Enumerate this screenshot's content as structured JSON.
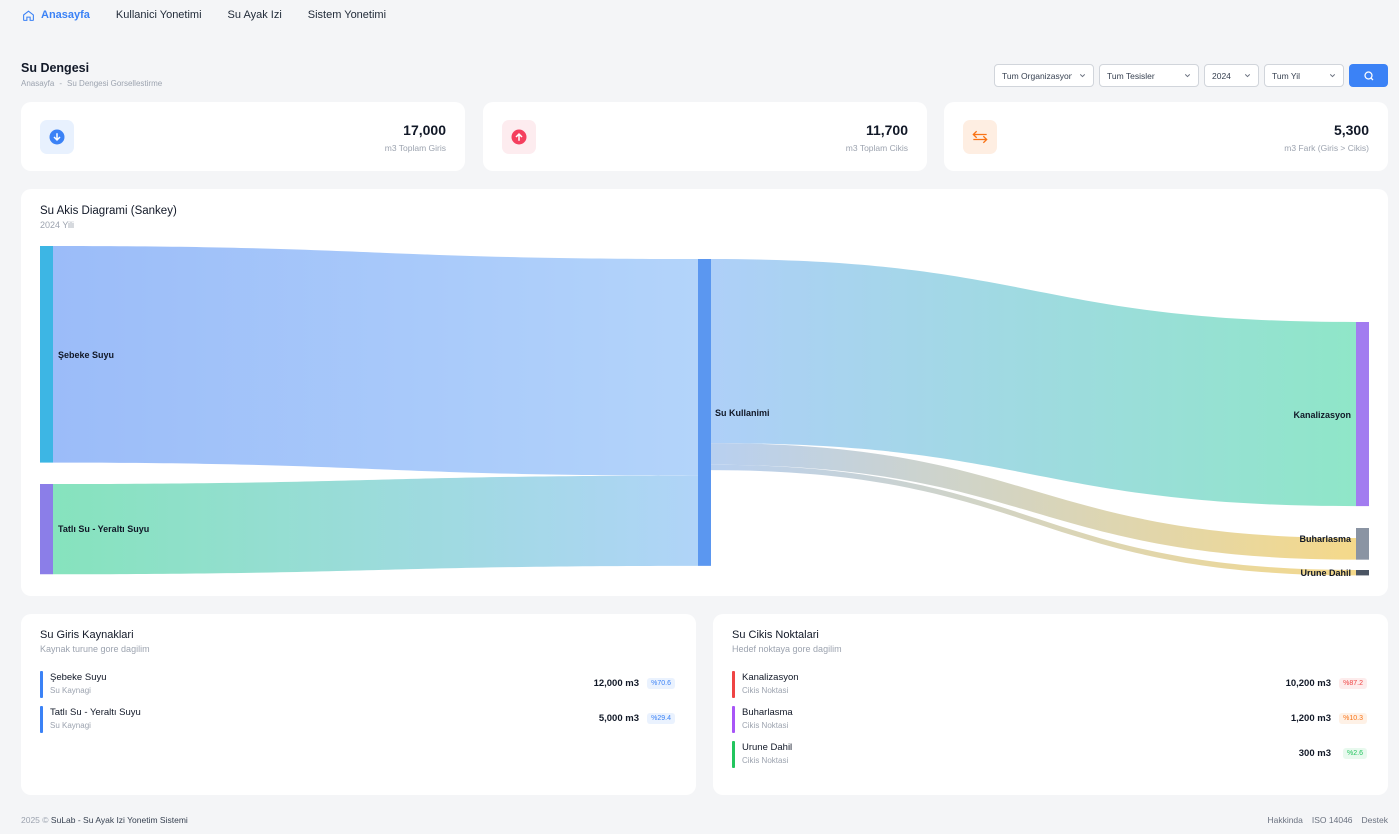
{
  "nav": {
    "items": [
      {
        "label": "Anasayfa"
      },
      {
        "label": "Kullanici Yonetimi"
      },
      {
        "label": "Su Ayak Izi"
      },
      {
        "label": "Sistem Yonetimi"
      }
    ]
  },
  "header": {
    "title": "Su Dengesi",
    "breadcrumb": [
      "Anasayfa",
      "-",
      "Su Dengesi Gorsellestirme"
    ]
  },
  "filters": {
    "organization": "Tum Organizasyonlar",
    "facility": "Tum Tesisler",
    "year": "2024",
    "period": "Tum Yil"
  },
  "stats": [
    {
      "value": "17,000",
      "label": "m3 Toplam Giris",
      "icon": "arrow-down-icon",
      "color": "#3b82f6"
    },
    {
      "value": "11,700",
      "label": "m3 Toplam Cikis",
      "icon": "arrow-up-icon",
      "color": "#f43f5e"
    },
    {
      "value": "5,300",
      "label": "m3 Fark (Giris > Cikis)",
      "icon": "swap-arrows-icon",
      "color": "#f97316"
    }
  ],
  "sankey": {
    "title": "Su Akis Diagrami (Sankey)",
    "subtitle": "2024 Yili",
    "node_labels": {
      "sebeke": "Şebeke Suyu",
      "tatli": "Tatlı Su - Yeraltı Suyu",
      "kullanim": "Su Kullanimi",
      "kanalizasyon": "Kanalizasyon",
      "buharlasma": "Buharlasma",
      "urune": "Urune Dahil"
    }
  },
  "chart_data": {
    "type": "sankey",
    "nodes": [
      "Şebeke Suyu",
      "Tatlı Su - Yeraltı Suyu",
      "Su Kullanimi",
      "Kanalizasyon",
      "Buharlasma",
      "Urune Dahil"
    ],
    "links": [
      {
        "source": "Şebeke Suyu",
        "target": "Su Kullanimi",
        "value": 12000
      },
      {
        "source": "Tatlı Su - Yeraltı Suyu",
        "target": "Su Kullanimi",
        "value": 5000
      },
      {
        "source": "Su Kullanimi",
        "target": "Kanalizasyon",
        "value": 10200
      },
      {
        "source": "Su Kullanimi",
        "target": "Buharlasma",
        "value": 1200
      },
      {
        "source": "Su Kullanimi",
        "target": "Urune Dahil",
        "value": 300
      }
    ]
  },
  "inputs_panel": {
    "title": "Su Giris Kaynaklari",
    "subtitle": "Kaynak turune gore dagilim",
    "rows": [
      {
        "name": "Şebeke Suyu",
        "type": "Su Kaynagi",
        "amount": "12,000 m3",
        "pct": "%70.6",
        "color": "#3b82f6"
      },
      {
        "name": "Tatlı Su - Yeraltı Suyu",
        "type": "Su Kaynagi",
        "amount": "5,000 m3",
        "pct": "%29.4",
        "color": "#3b82f6"
      }
    ]
  },
  "outputs_panel": {
    "title": "Su Cikis Noktalari",
    "subtitle": "Hedef noktaya gore dagilim",
    "rows": [
      {
        "name": "Kanalizasyon",
        "type": "Cikis Noktasi",
        "amount": "10,200 m3",
        "pct": "%87.2",
        "color": "#ef4444"
      },
      {
        "name": "Buharlasma",
        "type": "Cikis Noktasi",
        "amount": "1,200 m3",
        "pct": "%10.3",
        "color": "#a855f7"
      },
      {
        "name": "Urune Dahil",
        "type": "Cikis Noktasi",
        "amount": "300 m3",
        "pct": "%2.6",
        "color": "#22c55e"
      }
    ]
  },
  "footer": {
    "year": "2025 ©",
    "app": "SuLab - Su Ayak Izi Yonetim Sistemi",
    "links": [
      "Hakkinda",
      "ISO 14046",
      "Destek"
    ]
  }
}
